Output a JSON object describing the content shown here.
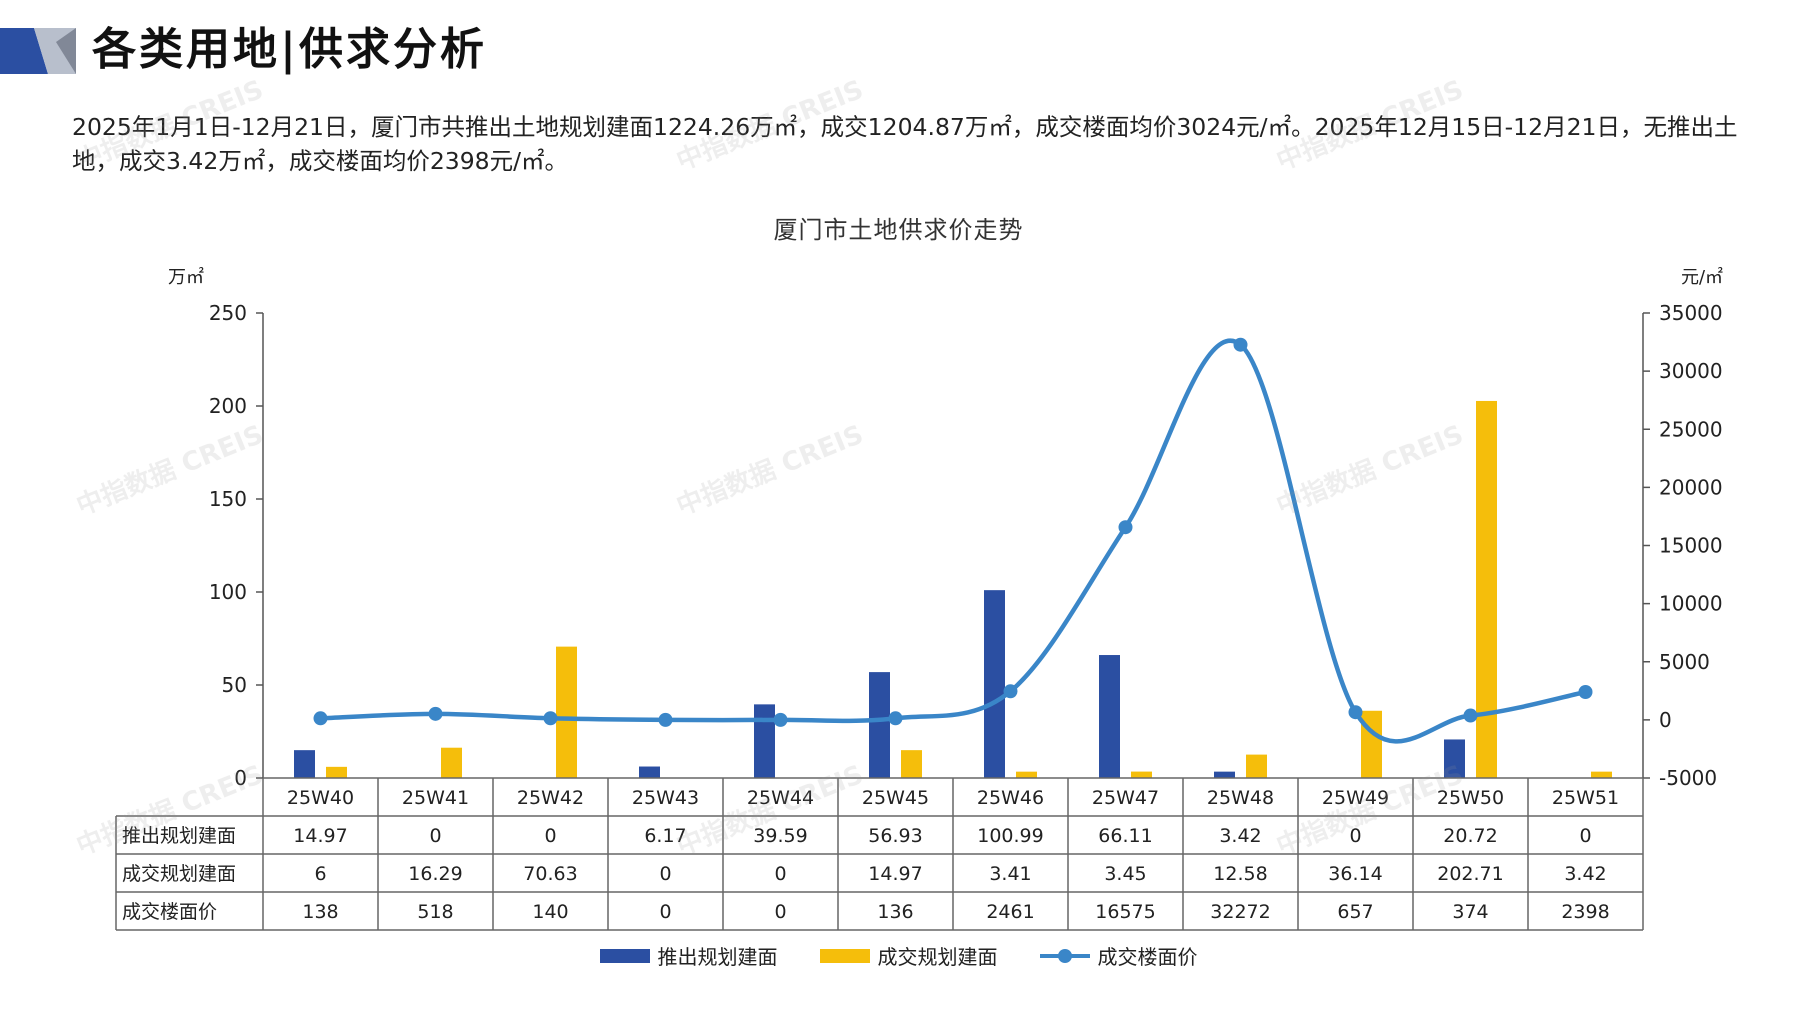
{
  "header": {
    "title": "各类用地|供求分析"
  },
  "summary": {
    "text": "2025年1月1日-12月21日，厦门市共推出土地规划建面1224.26万㎡，成交1204.87万㎡，成交楼面均价3024元/㎡。2025年12月15日-12月21日，无推出土地，成交3.42万㎡，成交楼面均价2398元/㎡。"
  },
  "watermark": {
    "text": "中指数据 CREIS"
  },
  "colors": {
    "supply": "#2b4fa2",
    "deal": "#f5be0b",
    "price": "#3a86c8",
    "logo_dark": "#2b4fa2",
    "logo_light": "#b8bfcc"
  },
  "chart_data": {
    "type": "bar",
    "title": "厦门市土地供求价走势",
    "y_left_unit": "万㎡",
    "y_right_unit": "元/㎡",
    "ylim_left": [
      0,
      250
    ],
    "yticks_left": [
      "250",
      "200",
      "150",
      "100",
      "50",
      "0"
    ],
    "ylim_right": [
      -5000,
      35000
    ],
    "yticks_right": [
      "35000",
      "30000",
      "25000",
      "20000",
      "15000",
      "10000",
      "5000",
      "0",
      "-5000"
    ],
    "categories": [
      "25W40",
      "25W41",
      "25W42",
      "25W43",
      "25W44",
      "25W45",
      "25W46",
      "25W47",
      "25W48",
      "25W49",
      "25W50",
      "25W51"
    ],
    "series": [
      {
        "name": "推出规划建面",
        "type": "bar",
        "axis": "left",
        "values": [
          14.97,
          0,
          0,
          6.17,
          39.59,
          56.93,
          100.99,
          66.11,
          3.42,
          0,
          20.72,
          0
        ],
        "labels": [
          "14.97",
          "0",
          "0",
          "6.17",
          "39.59",
          "56.93",
          "100.99",
          "66.11",
          "3.42",
          "0",
          "20.72",
          "0"
        ]
      },
      {
        "name": "成交规划建面",
        "type": "bar",
        "axis": "left",
        "values": [
          6,
          16.29,
          70.63,
          0,
          0,
          14.97,
          3.41,
          3.45,
          12.58,
          36.14,
          202.71,
          3.42
        ],
        "labels": [
          "6",
          "16.29",
          "70.63",
          "0",
          "0",
          "14.97",
          "3.41",
          "3.45",
          "12.58",
          "36.14",
          "202.71",
          "3.42"
        ]
      },
      {
        "name": "成交楼面价",
        "type": "line",
        "axis": "right",
        "values": [
          138,
          518,
          140,
          0,
          0,
          136,
          2461,
          16575,
          32272,
          657,
          374,
          2398
        ],
        "labels": [
          "138",
          "518",
          "140",
          "0",
          "0",
          "136",
          "2461",
          "16575",
          "32272",
          "657",
          "374",
          "2398"
        ]
      }
    ]
  }
}
